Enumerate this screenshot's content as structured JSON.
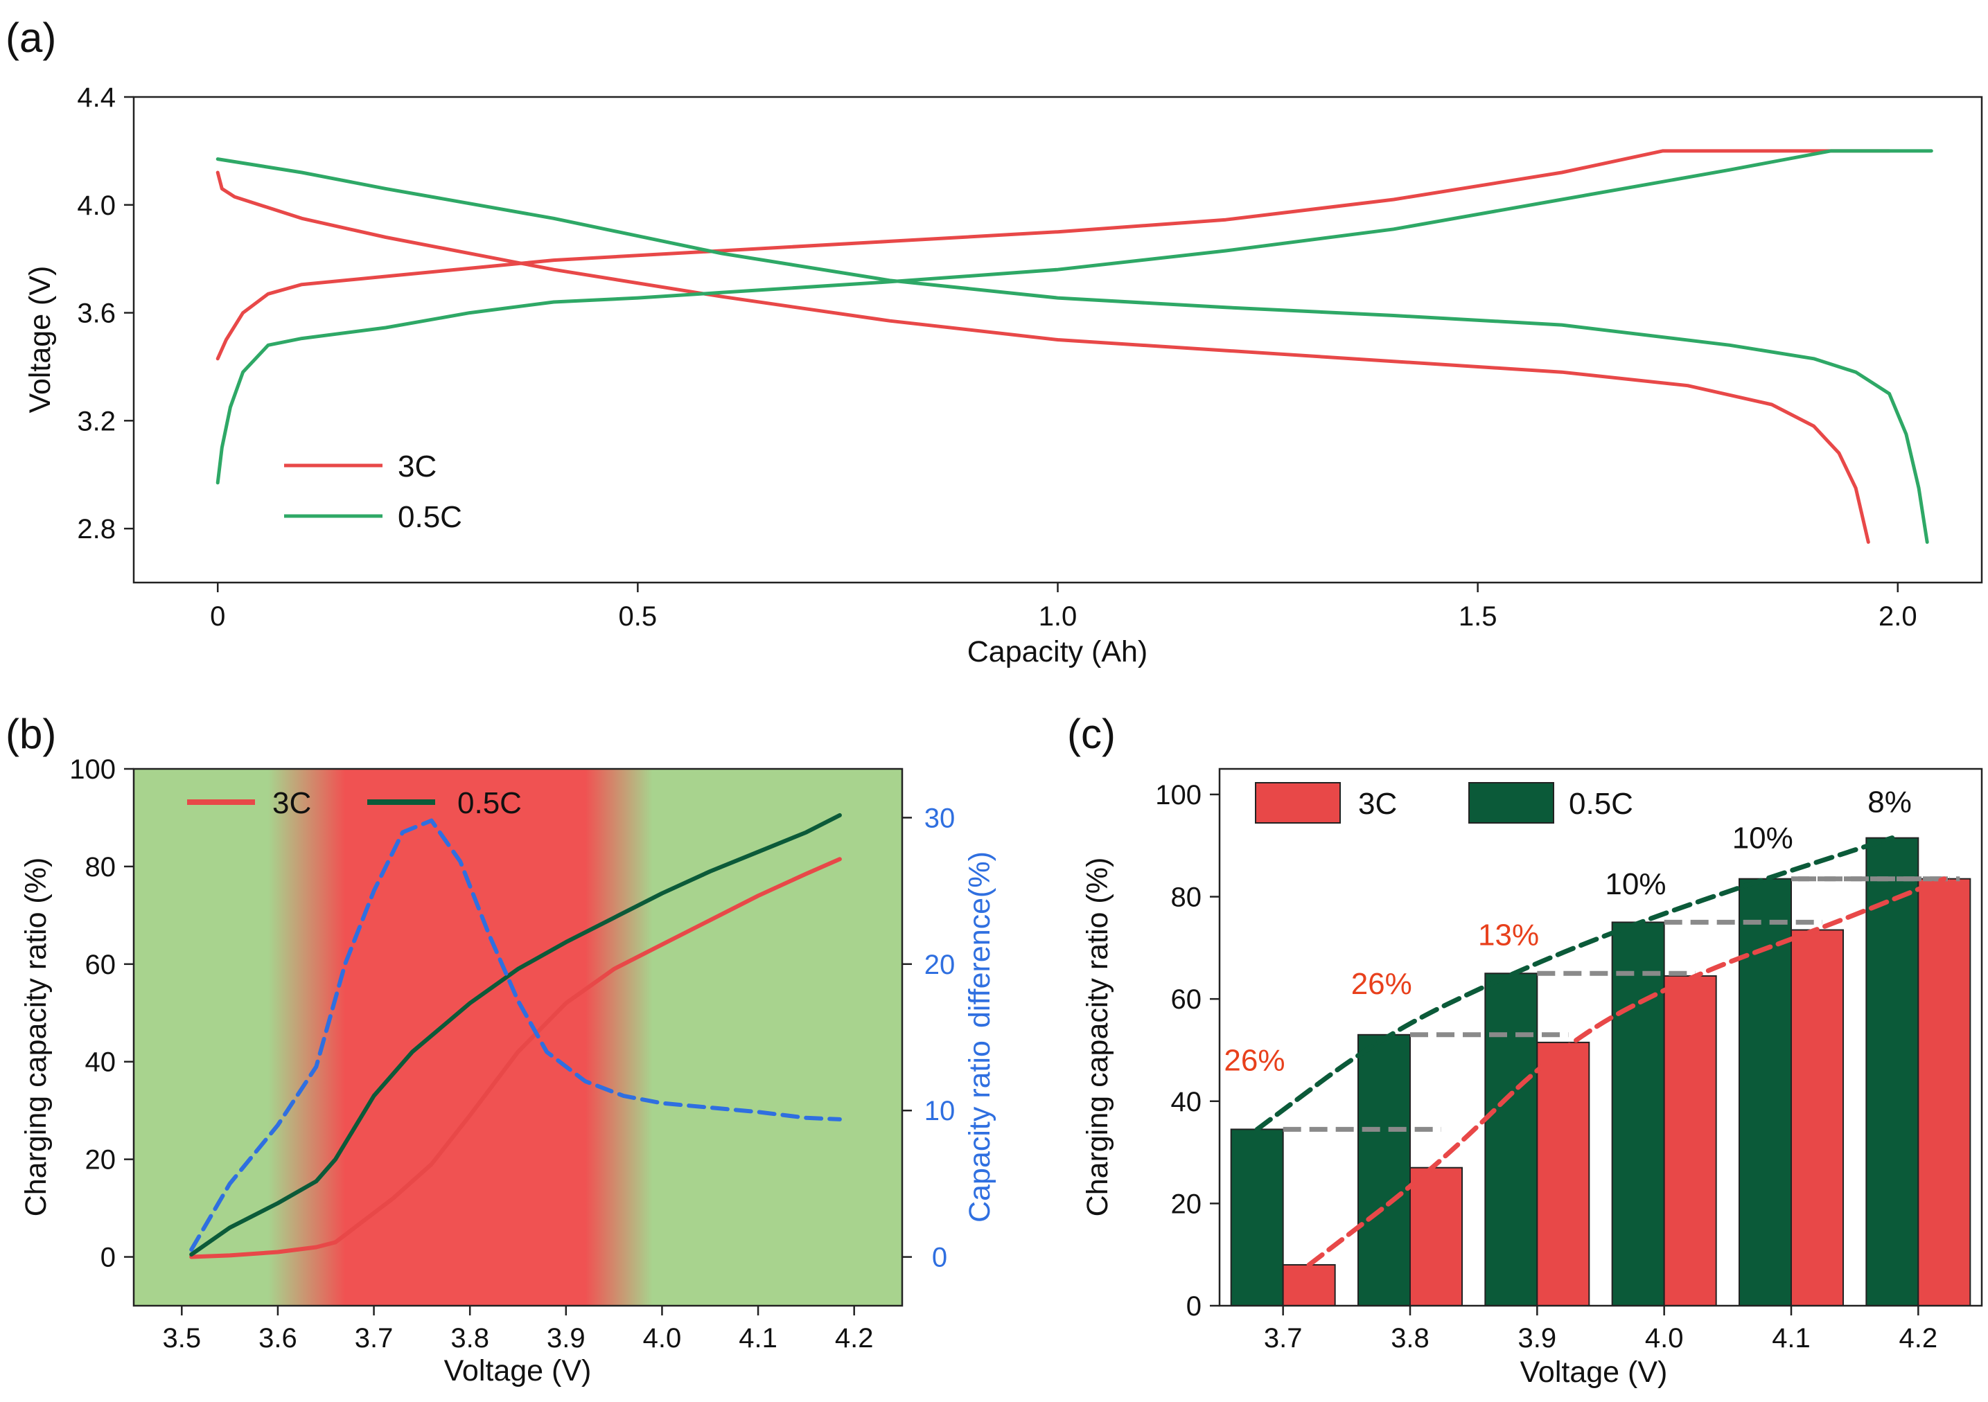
{
  "colors": {
    "red": "#e84848",
    "green": "#2ea866",
    "dark_green": "#0b5a39",
    "blue": "#2f6fe0",
    "bg_green": "#a8d38e",
    "bg_red": "#f05252",
    "dash_gray": "#8a8a8a",
    "pct_red": "#e8401c",
    "pct_black": "#111111"
  },
  "chart_data": [
    {
      "panel": "(a)",
      "type": "line",
      "xlabel": "Capacity (Ah)",
      "ylabel": "Voltage (V)",
      "xlim": [
        -0.1,
        2.1
      ],
      "ylim": [
        2.6,
        4.4
      ],
      "xticks": [
        0,
        0.5,
        1.0,
        1.5,
        2.0
      ],
      "xtick_labels": [
        "0",
        "0.5",
        "1.0",
        "1.5",
        "2.0"
      ],
      "yticks": [
        2.8,
        3.2,
        3.6,
        4.0,
        4.4
      ],
      "ytick_labels": [
        "2.8",
        "3.2",
        "3.6",
        "4.0",
        "4.4"
      ],
      "legend": [
        "3C",
        "0.5C"
      ],
      "legend_position": "bottom-left",
      "series": [
        {
          "name": "3C",
          "part": "charge",
          "color": "red",
          "points": [
            [
              0,
              3.43
            ],
            [
              0.01,
              3.5
            ],
            [
              0.03,
              3.6
            ],
            [
              0.06,
              3.67
            ],
            [
              0.1,
              3.705
            ],
            [
              0.2,
              3.735
            ],
            [
              0.4,
              3.795
            ],
            [
              0.6,
              3.83
            ],
            [
              0.8,
              3.865
            ],
            [
              1.0,
              3.9
            ],
            [
              1.2,
              3.945
            ],
            [
              1.4,
              4.02
            ],
            [
              1.6,
              4.12
            ],
            [
              1.72,
              4.2
            ],
            [
              1.99,
              4.2
            ]
          ]
        },
        {
          "name": "3C",
          "part": "discharge",
          "color": "red",
          "points": [
            [
              0,
              4.12
            ],
            [
              0.005,
              4.06
            ],
            [
              0.02,
              4.03
            ],
            [
              0.1,
              3.95
            ],
            [
              0.2,
              3.88
            ],
            [
              0.4,
              3.76
            ],
            [
              0.6,
              3.66
            ],
            [
              0.8,
              3.57
            ],
            [
              1.0,
              3.5
            ],
            [
              1.2,
              3.46
            ],
            [
              1.4,
              3.42
            ],
            [
              1.6,
              3.38
            ],
            [
              1.75,
              3.33
            ],
            [
              1.85,
              3.26
            ],
            [
              1.9,
              3.18
            ],
            [
              1.93,
              3.08
            ],
            [
              1.95,
              2.95
            ],
            [
              1.965,
              2.75
            ]
          ]
        },
        {
          "name": "0.5C",
          "part": "charge",
          "color": "green",
          "points": [
            [
              0,
              2.97
            ],
            [
              0.005,
              3.1
            ],
            [
              0.015,
              3.25
            ],
            [
              0.03,
              3.38
            ],
            [
              0.06,
              3.48
            ],
            [
              0.1,
              3.505
            ],
            [
              0.2,
              3.545
            ],
            [
              0.3,
              3.6
            ],
            [
              0.4,
              3.64
            ],
            [
              0.5,
              3.655
            ],
            [
              0.6,
              3.675
            ],
            [
              0.8,
              3.715
            ],
            [
              1.0,
              3.76
            ],
            [
              1.2,
              3.83
            ],
            [
              1.4,
              3.91
            ],
            [
              1.6,
              4.02
            ],
            [
              1.8,
              4.13
            ],
            [
              1.92,
              4.2
            ],
            [
              2.04,
              4.2
            ]
          ]
        },
        {
          "name": "0.5C",
          "part": "discharge",
          "color": "green",
          "points": [
            [
              0,
              4.17
            ],
            [
              0.1,
              4.12
            ],
            [
              0.2,
              4.06
            ],
            [
              0.4,
              3.95
            ],
            [
              0.6,
              3.82
            ],
            [
              0.8,
              3.72
            ],
            [
              1.0,
              3.655
            ],
            [
              1.2,
              3.62
            ],
            [
              1.4,
              3.59
            ],
            [
              1.6,
              3.555
            ],
            [
              1.8,
              3.48
            ],
            [
              1.9,
              3.43
            ],
            [
              1.95,
              3.38
            ],
            [
              1.99,
              3.3
            ],
            [
              2.01,
              3.15
            ],
            [
              2.025,
              2.95
            ],
            [
              2.035,
              2.75
            ]
          ]
        }
      ]
    },
    {
      "panel": "(b)",
      "type": "line",
      "xlabel": "Voltage (V)",
      "ylabel": "Charging capacity ratio (%)",
      "y2label_part1": "Capacity ratio",
      "y2label_part2": "difference(%)",
      "xlim": [
        3.45,
        4.25
      ],
      "ylim": [
        -10,
        100
      ],
      "y2lim": [
        -3.33,
        33.33
      ],
      "xticks": [
        3.5,
        3.6,
        3.7,
        3.8,
        3.9,
        4.0,
        4.1,
        4.2
      ],
      "xtick_labels": [
        "3.5",
        "3.6",
        "3.7",
        "3.8",
        "3.9",
        "4.0",
        "4.1",
        "4.2"
      ],
      "yticks": [
        0,
        20,
        40,
        60,
        80,
        100
      ],
      "ytick_labels": [
        "0",
        "20",
        "40",
        "60",
        "80",
        "100"
      ],
      "y2ticks": [
        0,
        10,
        20,
        30
      ],
      "y2tick_labels": [
        "0",
        "10",
        "20",
        "30"
      ],
      "legend": [
        "3C",
        "0.5C"
      ],
      "legend_position": "top-left",
      "background": "green outside, red band from about 3.64 V to 3.95 V with gradient edges",
      "series": [
        {
          "name": "3C",
          "color": "red",
          "axis": "left",
          "points": [
            [
              3.51,
              0
            ],
            [
              3.55,
              0.3
            ],
            [
              3.6,
              1
            ],
            [
              3.64,
              2
            ],
            [
              3.66,
              3
            ],
            [
              3.68,
              6
            ],
            [
              3.72,
              12
            ],
            [
              3.76,
              19
            ],
            [
              3.8,
              29
            ],
            [
              3.85,
              42
            ],
            [
              3.9,
              52
            ],
            [
              3.95,
              59
            ],
            [
              4.0,
              64
            ],
            [
              4.05,
              69
            ],
            [
              4.1,
              74
            ],
            [
              4.15,
              78.5
            ],
            [
              4.185,
              81.5
            ]
          ]
        },
        {
          "name": "0.5C",
          "color": "dark_green",
          "axis": "left",
          "points": [
            [
              3.51,
              0.5
            ],
            [
              3.55,
              6
            ],
            [
              3.6,
              11
            ],
            [
              3.64,
              15.5
            ],
            [
              3.66,
              20
            ],
            [
              3.7,
              33
            ],
            [
              3.74,
              42
            ],
            [
              3.8,
              52
            ],
            [
              3.85,
              59
            ],
            [
              3.9,
              64.5
            ],
            [
              3.95,
              69.5
            ],
            [
              4.0,
              74.5
            ],
            [
              4.05,
              79
            ],
            [
              4.1,
              83
            ],
            [
              4.15,
              87
            ],
            [
              4.185,
              90.5
            ]
          ]
        },
        {
          "name": "difference",
          "color": "blue",
          "axis": "right",
          "dashed": true,
          "points": [
            [
              3.51,
              0.5
            ],
            [
              3.55,
              5
            ],
            [
              3.6,
              9
            ],
            [
              3.64,
              13
            ],
            [
              3.67,
              20
            ],
            [
              3.7,
              25
            ],
            [
              3.73,
              29
            ],
            [
              3.76,
              29.8
            ],
            [
              3.79,
              27
            ],
            [
              3.82,
              22
            ],
            [
              3.85,
              17.5
            ],
            [
              3.88,
              14
            ],
            [
              3.92,
              12
            ],
            [
              3.96,
              11
            ],
            [
              4.0,
              10.5
            ],
            [
              4.05,
              10.2
            ],
            [
              4.1,
              9.9
            ],
            [
              4.15,
              9.5
            ],
            [
              4.185,
              9.4
            ]
          ]
        }
      ]
    },
    {
      "panel": "(c)",
      "type": "bar",
      "xlabel": "Voltage (V)",
      "ylabel": "Charging capacity ratio (%)",
      "categories": [
        "3.7",
        "3.8",
        "3.9",
        "4.0",
        "4.1",
        "4.2"
      ],
      "ylim": [
        0,
        105
      ],
      "yticks": [
        0,
        20,
        40,
        60,
        80,
        100
      ],
      "ytick_labels": [
        "0",
        "20",
        "40",
        "60",
        "80",
        "100"
      ],
      "legend_position": "top-left",
      "series": [
        {
          "name": "0.5C",
          "color": "dark_green",
          "values": [
            34.5,
            53,
            65,
            75,
            83.5,
            91.5
          ]
        },
        {
          "name": "3C",
          "color": "red",
          "values": [
            8,
            27,
            51.5,
            64.5,
            73.5,
            83.5
          ]
        }
      ],
      "annotations": [
        {
          "text": "26%",
          "color": "pct_red",
          "category": "3.7",
          "y": 46
        },
        {
          "text": "26%",
          "color": "pct_red",
          "category": "3.8",
          "y": 61
        },
        {
          "text": "13%",
          "color": "pct_red",
          "category": "3.9",
          "y": 70.5
        },
        {
          "text": "10%",
          "color": "pct_black",
          "category": "4.0",
          "y": 80.5
        },
        {
          "text": "10%",
          "color": "pct_black",
          "category": "4.1",
          "y": 89.5
        },
        {
          "text": "8%",
          "color": "pct_black",
          "category": "4.2",
          "y": 96.5
        }
      ]
    }
  ]
}
